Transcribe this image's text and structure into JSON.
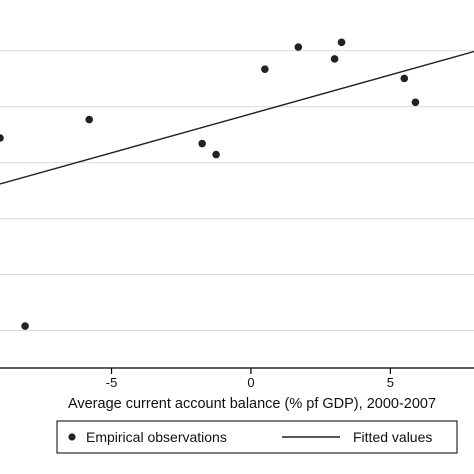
{
  "chart_data": {
    "type": "scatter",
    "xlabel": "Average current account balance (% pf GDP), 2000-2007",
    "ylabel": "",
    "xlim": [
      -9,
      8
    ],
    "ylim": [
      0,
      1
    ],
    "x_ticks": [
      -5,
      0,
      5
    ],
    "y_grid": [
      0.102,
      0.254,
      0.406,
      0.558,
      0.71,
      0.862
    ],
    "grid": true,
    "legend_position": "bottom",
    "series": [
      {
        "name": "Empirical observations",
        "kind": "scatter",
        "points": [
          {
            "x": -9.0,
            "y": 0.625
          },
          {
            "x": -8.1,
            "y": 0.114
          },
          {
            "x": -5.8,
            "y": 0.675
          },
          {
            "x": -1.75,
            "y": 0.61
          },
          {
            "x": -1.25,
            "y": 0.58
          },
          {
            "x": 0.5,
            "y": 0.812
          },
          {
            "x": 1.7,
            "y": 0.872
          },
          {
            "x": 3.0,
            "y": 0.84
          },
          {
            "x": 3.25,
            "y": 0.885
          },
          {
            "x": 5.5,
            "y": 0.787
          },
          {
            "x": 5.9,
            "y": 0.722
          }
        ]
      },
      {
        "name": "Fitted values",
        "kind": "line",
        "points": [
          {
            "x": -9.0,
            "y": 0.5
          },
          {
            "x": 8.0,
            "y": 0.86
          }
        ]
      }
    ]
  }
}
